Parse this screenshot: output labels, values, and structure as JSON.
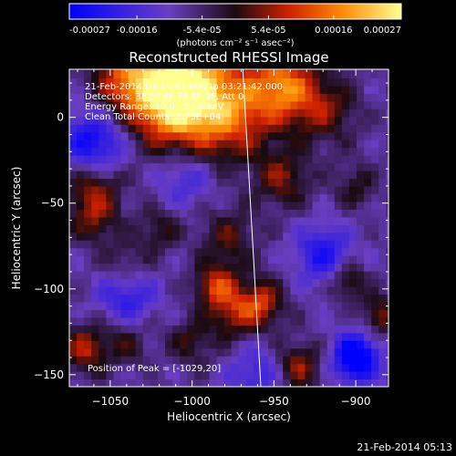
{
  "chart_data": {
    "type": "heatmap",
    "title": "Reconstructed RHESSI Image",
    "xlabel": "Heliocentric X (arcsec)",
    "ylabel": "Heliocentric Y (arcsec)",
    "xlim": [
      -1075,
      -880
    ],
    "ylim": [
      -157,
      28
    ],
    "xticks": [
      -1050,
      -1000,
      -950,
      -900
    ],
    "yticks": [
      -150,
      -100,
      -50,
      0
    ],
    "colorbar": {
      "range": [
        -0.00027,
        0.00027
      ],
      "tick_values": [
        -0.00027,
        -0.00016,
        -5.4e-05,
        5.4e-05,
        0.00016,
        0.00027
      ],
      "tick_labels": [
        "-0.00027",
        "-0.00016",
        "-5.4e-05",
        "5.4e-05",
        "0.00016",
        "0.00027"
      ],
      "units": "(photons cm⁻² s⁻¹ asec⁻²)",
      "colors": [
        "#0000ff",
        "#6a3ec2",
        "#1a0a10",
        "#d02000",
        "#ff8a00",
        "#ffff90"
      ]
    },
    "annotations": [
      "21-Feb-2014 03:15:42.000 to 03:21:42.000",
      "Detectors: 3F 5F 6F 7F 8F 9F, Att 0",
      "Energy Range: 12.0 - 25.0 keV",
      "Clean    Total Counts: 1.73E+04"
    ],
    "peak_label": "Position of Peak = [-1029,20]",
    "peak": [
      -1029,
      20
    ],
    "limb_line": [
      [
        -969,
        28
      ],
      [
        -958,
        -157
      ]
    ],
    "blobs": [
      {
        "x": -1010,
        "y": 12,
        "v": 0.00027,
        "s": 18
      },
      {
        "x": -1000,
        "y": 20,
        "v": 0.00018,
        "s": 26
      },
      {
        "x": -1040,
        "y": 22,
        "v": 0.00016,
        "s": 14
      },
      {
        "x": -945,
        "y": 18,
        "v": 0.00022,
        "s": 14
      },
      {
        "x": -975,
        "y": 0,
        "v": 0.00014,
        "s": 16
      },
      {
        "x": -920,
        "y": 5,
        "v": 0.00012,
        "s": 14
      },
      {
        "x": -945,
        "y": -35,
        "v": 0.00012,
        "s": 12
      },
      {
        "x": -1060,
        "y": -40,
        "v": 0.00014,
        "s": 12
      },
      {
        "x": -1060,
        "y": -60,
        "v": 0.0001,
        "s": 10
      },
      {
        "x": -1020,
        "y": -65,
        "v": 9e-05,
        "s": 9
      },
      {
        "x": -978,
        "y": -70,
        "v": 0.0001,
        "s": 12
      },
      {
        "x": -1040,
        "y": -85,
        "v": 7e-05,
        "s": 10
      },
      {
        "x": -985,
        "y": -98,
        "v": 0.00018,
        "s": 9
      },
      {
        "x": -958,
        "y": -108,
        "v": 0.00017,
        "s": 10
      },
      {
        "x": -975,
        "y": -115,
        "v": 0.00012,
        "s": 10
      },
      {
        "x": -1000,
        "y": -130,
        "v": 9e-05,
        "s": 10
      },
      {
        "x": -1040,
        "y": -130,
        "v": 8e-05,
        "s": 10
      },
      {
        "x": -1065,
        "y": -135,
        "v": 0.00015,
        "s": 10
      },
      {
        "x": -935,
        "y": -145,
        "v": 0.00014,
        "s": 10
      },
      {
        "x": -905,
        "y": -95,
        "v": 0.00012,
        "s": 8
      },
      {
        "x": -885,
        "y": -115,
        "v": 0.00013,
        "s": 8
      },
      {
        "x": -900,
        "y": -40,
        "v": 8e-05,
        "s": 9
      },
      {
        "x": -1060,
        "y": -15,
        "v": -0.00018,
        "s": 14
      },
      {
        "x": -1040,
        "y": -105,
        "v": -0.00012,
        "s": 12
      },
      {
        "x": -900,
        "y": -140,
        "v": -0.00024,
        "s": 10
      },
      {
        "x": -920,
        "y": -80,
        "v": -0.00014,
        "s": 12
      },
      {
        "x": -1005,
        "y": -35,
        "v": -0.0001,
        "s": 12
      },
      {
        "x": -960,
        "y": -150,
        "v": -0.0001,
        "s": 12
      }
    ]
  },
  "footer": {
    "timestamp": "21-Feb-2014 05:13"
  }
}
